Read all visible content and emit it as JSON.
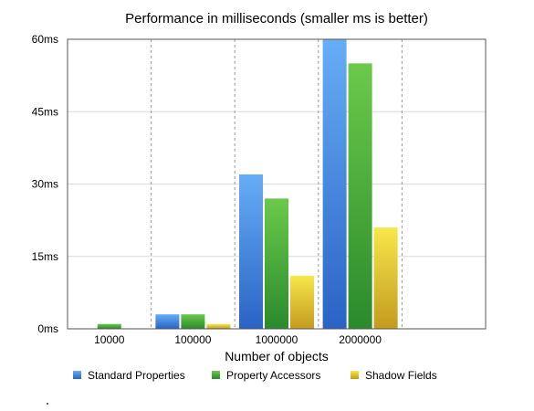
{
  "chart_data": {
    "type": "bar",
    "title": "Performance in milliseconds (smaller ms is better)",
    "xlabel": "Number of objects",
    "ylabel": "",
    "categories": [
      "10000",
      "100000",
      "1000000",
      "2000000",
      ""
    ],
    "ylim": [
      0,
      60
    ],
    "yticks": [
      0,
      15,
      30,
      45,
      60
    ],
    "ytick_labels": [
      "0ms",
      "15ms",
      "30ms",
      "45ms",
      "60ms"
    ],
    "grid": true,
    "legend": "bottom",
    "series": [
      {
        "name": "Standard Properties",
        "color": "#3f7fd8",
        "values": [
          0,
          3,
          32,
          60,
          null
        ]
      },
      {
        "name": "Property Accessors",
        "color": "#46a83a",
        "values": [
          1,
          3,
          27,
          55,
          null
        ]
      },
      {
        "name": "Shadow Fields",
        "color": "#e0c229",
        "values": [
          0,
          1,
          11,
          21,
          null
        ]
      }
    ]
  }
}
